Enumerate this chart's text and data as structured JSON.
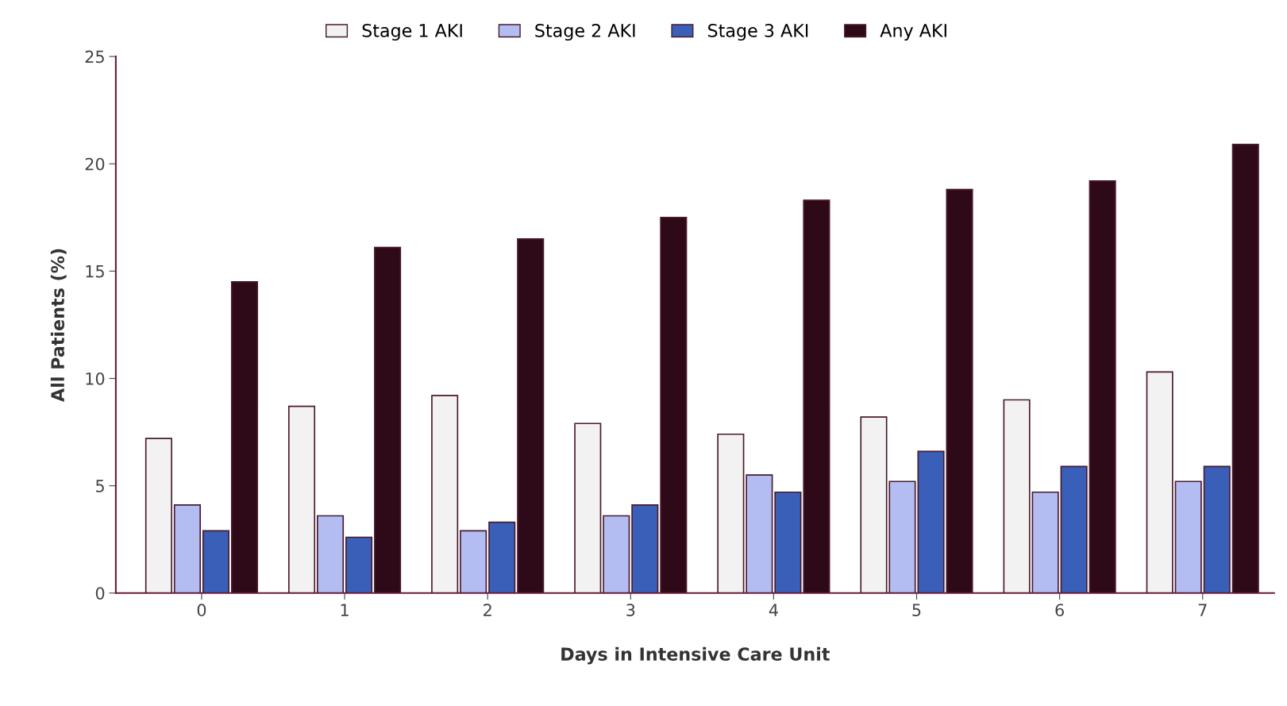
{
  "chart_data": {
    "type": "bar",
    "xlabel": "Days in Intensive Care Unit",
    "ylabel": "All Patients (%)",
    "categories": [
      "0",
      "1",
      "2",
      "3",
      "4",
      "5",
      "6",
      "7"
    ],
    "series": [
      {
        "name": "Stage 1 AKI",
        "color": "#f2f2f2",
        "values": [
          7.2,
          8.7,
          9.2,
          7.9,
          7.4,
          8.2,
          9.0,
          10.3
        ]
      },
      {
        "name": "Stage 2 AKI",
        "color": "#b3bdf2",
        "values": [
          4.1,
          3.6,
          2.9,
          3.6,
          5.5,
          5.2,
          4.7,
          5.2
        ]
      },
      {
        "name": "Stage 3 AKI",
        "color": "#3a5fb8",
        "values": [
          2.9,
          2.6,
          3.3,
          4.1,
          4.7,
          6.6,
          5.9,
          5.9
        ]
      },
      {
        "name": "Any AKI",
        "color": "#2e0a18",
        "values": [
          14.5,
          16.1,
          16.5,
          17.5,
          18.3,
          18.8,
          19.2,
          20.9
        ]
      }
    ],
    "ylim": [
      0,
      25
    ],
    "yticks": [
      0,
      5,
      10,
      15,
      20,
      25
    ],
    "grid": false,
    "legend": "top"
  }
}
